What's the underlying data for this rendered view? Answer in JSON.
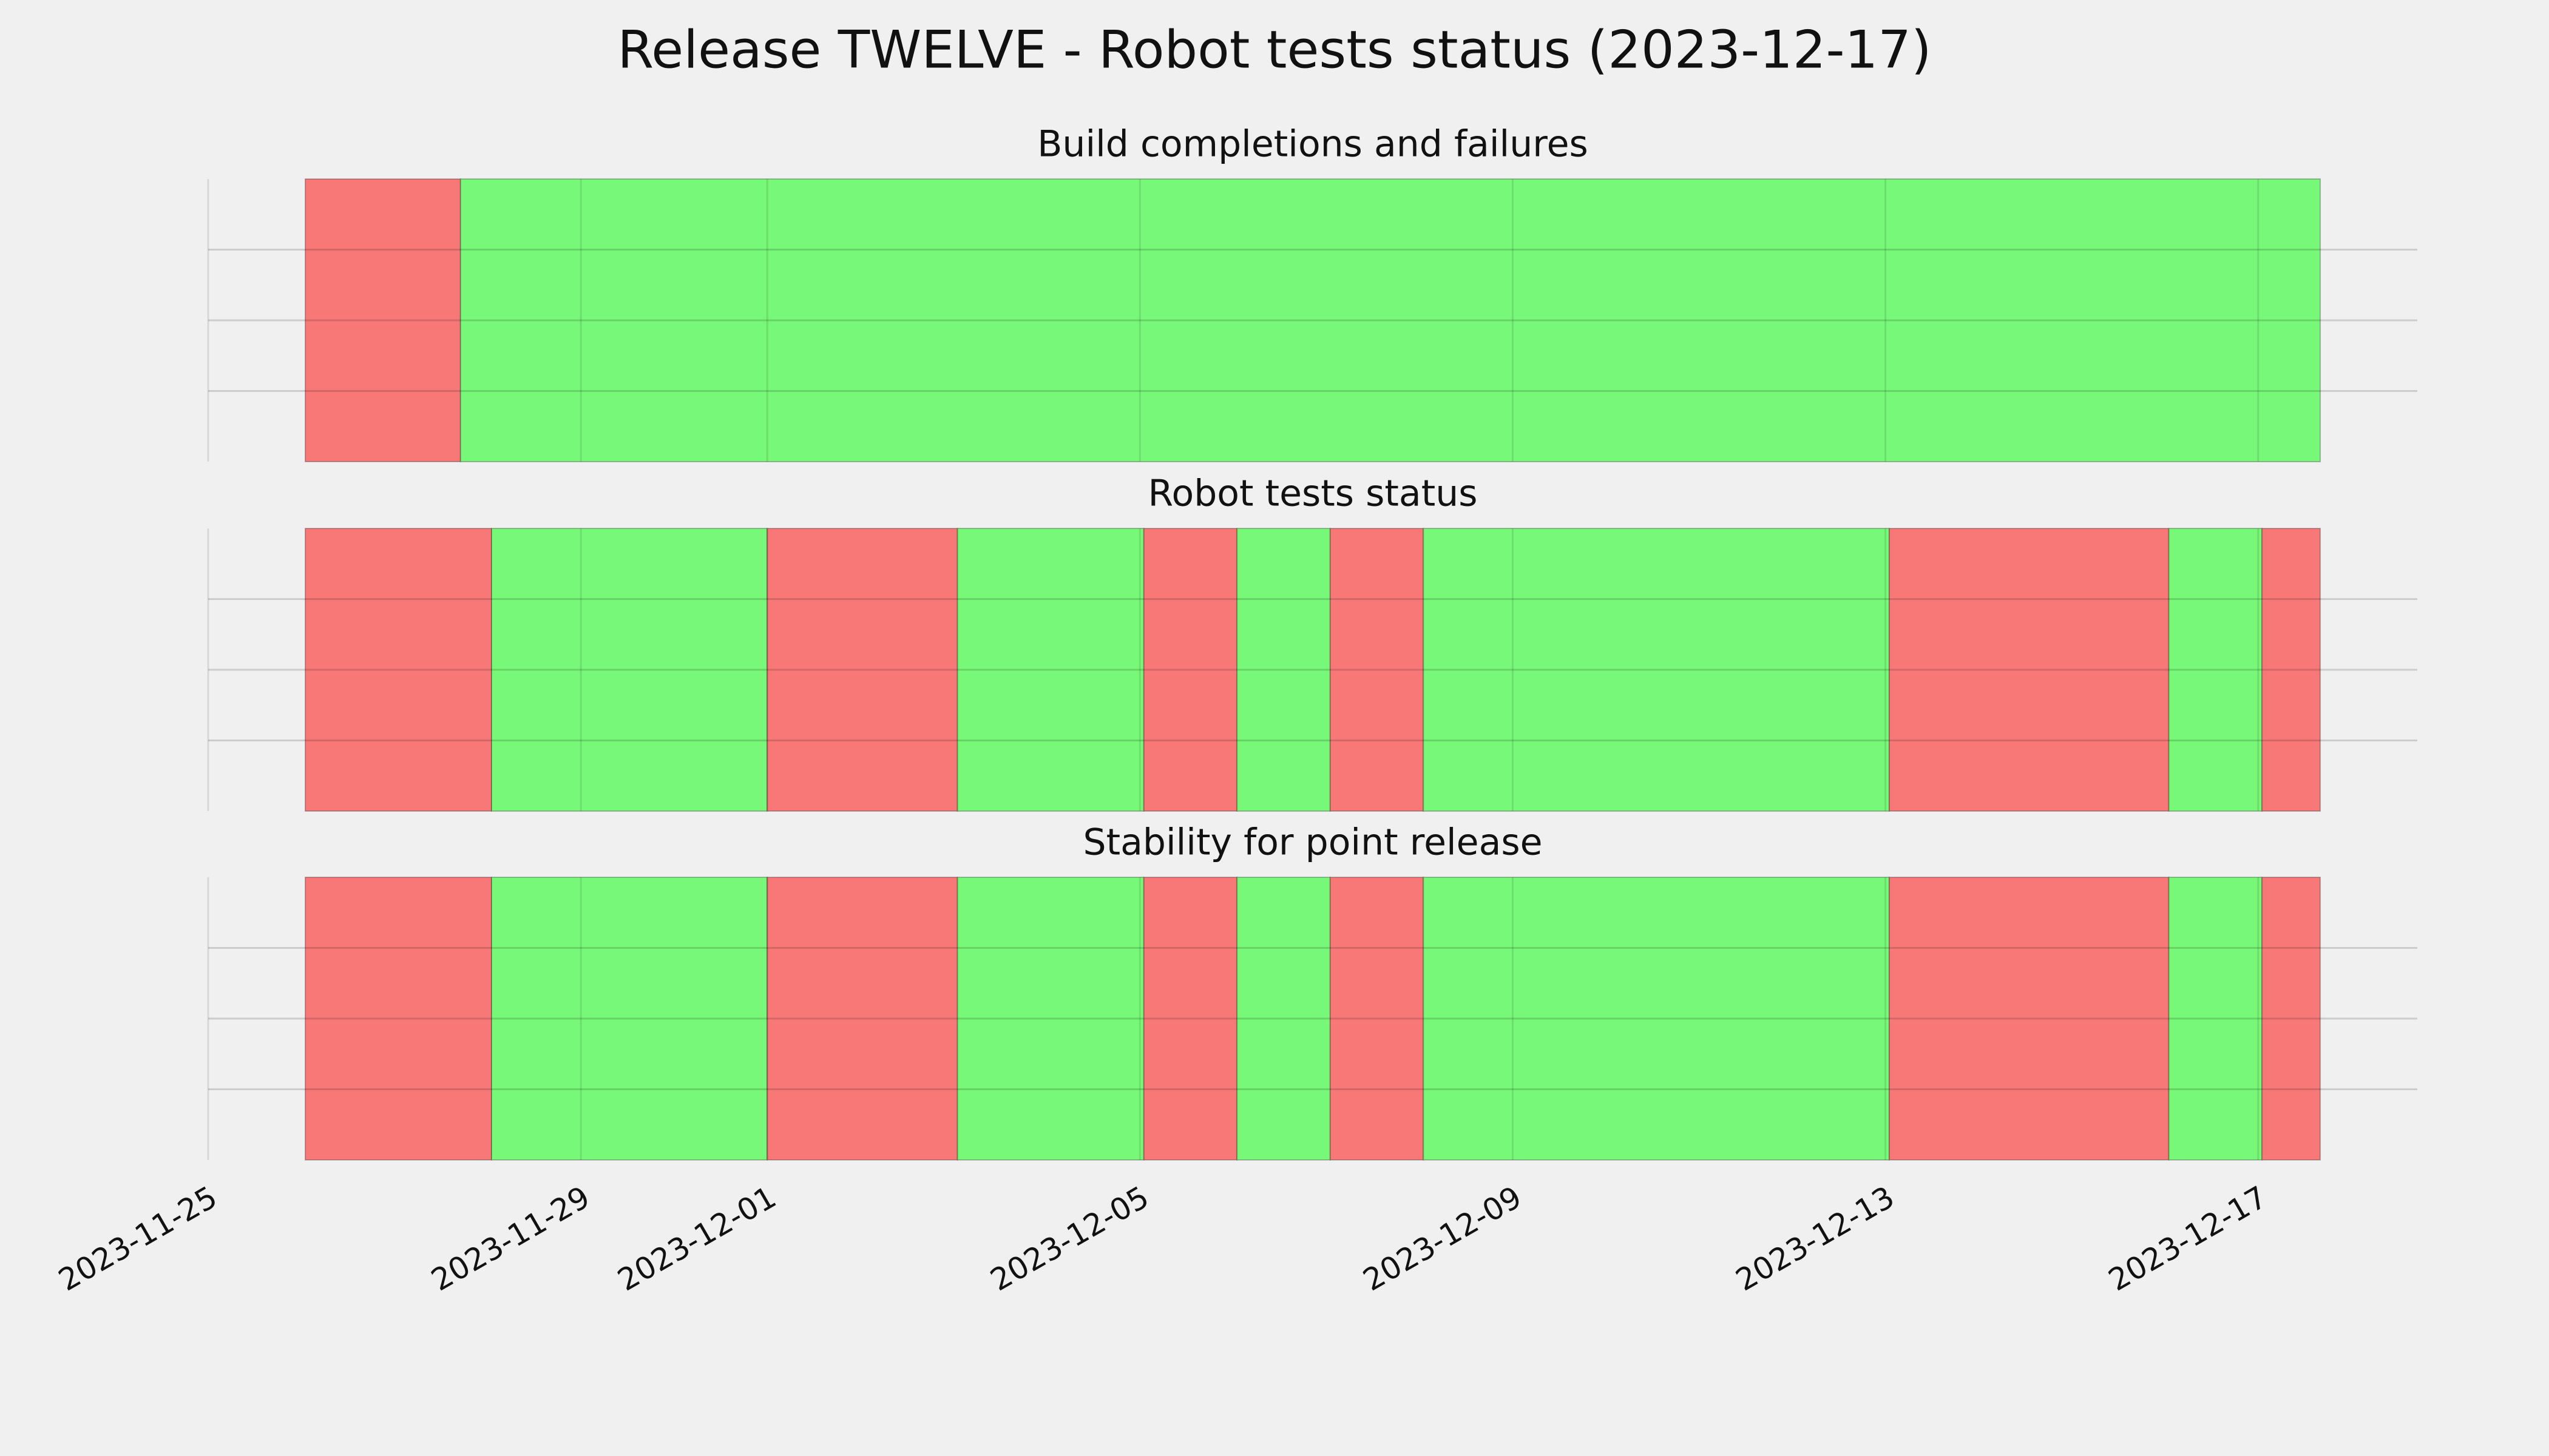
{
  "title": "Release TWELVE - Robot tests status (2023-12-17)",
  "chart_data": [
    {
      "type": "timeline",
      "title": "Build completions and failures",
      "xlim": [
        "2023-11-25",
        "2023-12-18T17:00"
      ],
      "xticks": [
        "2023-11-25",
        "2023-11-29",
        "2023-12-01",
        "2023-12-05",
        "2023-12-09",
        "2023-12-13",
        "2023-12-17"
      ],
      "ylim": [
        0,
        1
      ],
      "yticks": [
        0.25,
        0.5,
        0.75
      ],
      "grid": true,
      "spans": [
        {
          "start": "2023-11-26T01:00",
          "end": "2023-11-27T17:00",
          "color": "#f87878"
        },
        {
          "start": "2023-11-27T17:00",
          "end": "2023-12-17T16:00",
          "color": "#78f878"
        }
      ]
    },
    {
      "type": "timeline",
      "title": "Robot tests status",
      "xlim": [
        "2023-11-25",
        "2023-12-18T17:00"
      ],
      "xticks": [
        "2023-11-25",
        "2023-11-29",
        "2023-12-01",
        "2023-12-05",
        "2023-12-09",
        "2023-12-13",
        "2023-12-17"
      ],
      "ylim": [
        0,
        1
      ],
      "yticks": [
        0.25,
        0.5,
        0.75
      ],
      "grid": true,
      "spans": [
        {
          "start": "2023-11-26T01:00",
          "end": "2023-11-28T01:00",
          "color": "#f87878"
        },
        {
          "start": "2023-11-28T01:00",
          "end": "2023-12-01T00:00",
          "color": "#78f878"
        },
        {
          "start": "2023-12-01T00:00",
          "end": "2023-12-03T01:00",
          "color": "#f87878"
        },
        {
          "start": "2023-12-03T01:00",
          "end": "2023-12-05T01:00",
          "color": "#78f878"
        },
        {
          "start": "2023-12-05T01:00",
          "end": "2023-12-06T01:00",
          "color": "#f87878"
        },
        {
          "start": "2023-12-06T01:00",
          "end": "2023-12-07T01:00",
          "color": "#78f878"
        },
        {
          "start": "2023-12-07T01:00",
          "end": "2023-12-08T01:00",
          "color": "#f87878"
        },
        {
          "start": "2023-12-08T01:00",
          "end": "2023-12-13T01:00",
          "color": "#78f878"
        },
        {
          "start": "2023-12-13T01:00",
          "end": "2023-12-16T01:00",
          "color": "#f87878"
        },
        {
          "start": "2023-12-16T01:00",
          "end": "2023-12-17T01:00",
          "color": "#78f878"
        },
        {
          "start": "2023-12-17T01:00",
          "end": "2023-12-17T16:00",
          "color": "#f87878"
        }
      ]
    },
    {
      "type": "timeline",
      "title": "Stability for point release",
      "xlim": [
        "2023-11-25",
        "2023-12-18T17:00"
      ],
      "xticks": [
        "2023-11-25",
        "2023-11-29",
        "2023-12-01",
        "2023-12-05",
        "2023-12-09",
        "2023-12-13",
        "2023-12-17"
      ],
      "ylim": [
        0,
        1
      ],
      "yticks": [
        0.25,
        0.5,
        0.75
      ],
      "grid": true,
      "show_xtick_labels": true,
      "spans": [
        {
          "start": "2023-11-26T01:00",
          "end": "2023-11-28T01:00",
          "color": "#f87878"
        },
        {
          "start": "2023-11-28T01:00",
          "end": "2023-12-01T00:00",
          "color": "#78f878"
        },
        {
          "start": "2023-12-01T00:00",
          "end": "2023-12-03T01:00",
          "color": "#f87878"
        },
        {
          "start": "2023-12-03T01:00",
          "end": "2023-12-05T01:00",
          "color": "#78f878"
        },
        {
          "start": "2023-12-05T01:00",
          "end": "2023-12-06T01:00",
          "color": "#f87878"
        },
        {
          "start": "2023-12-06T01:00",
          "end": "2023-12-07T01:00",
          "color": "#78f878"
        },
        {
          "start": "2023-12-07T01:00",
          "end": "2023-12-08T01:00",
          "color": "#f87878"
        },
        {
          "start": "2023-12-08T01:00",
          "end": "2023-12-13T01:00",
          "color": "#78f878"
        },
        {
          "start": "2023-12-13T01:00",
          "end": "2023-12-16T01:00",
          "color": "#f87878"
        },
        {
          "start": "2023-12-16T01:00",
          "end": "2023-12-17T01:00",
          "color": "#78f878"
        },
        {
          "start": "2023-12-17T01:00",
          "end": "2023-12-17T16:00",
          "color": "#f87878"
        }
      ]
    }
  ]
}
